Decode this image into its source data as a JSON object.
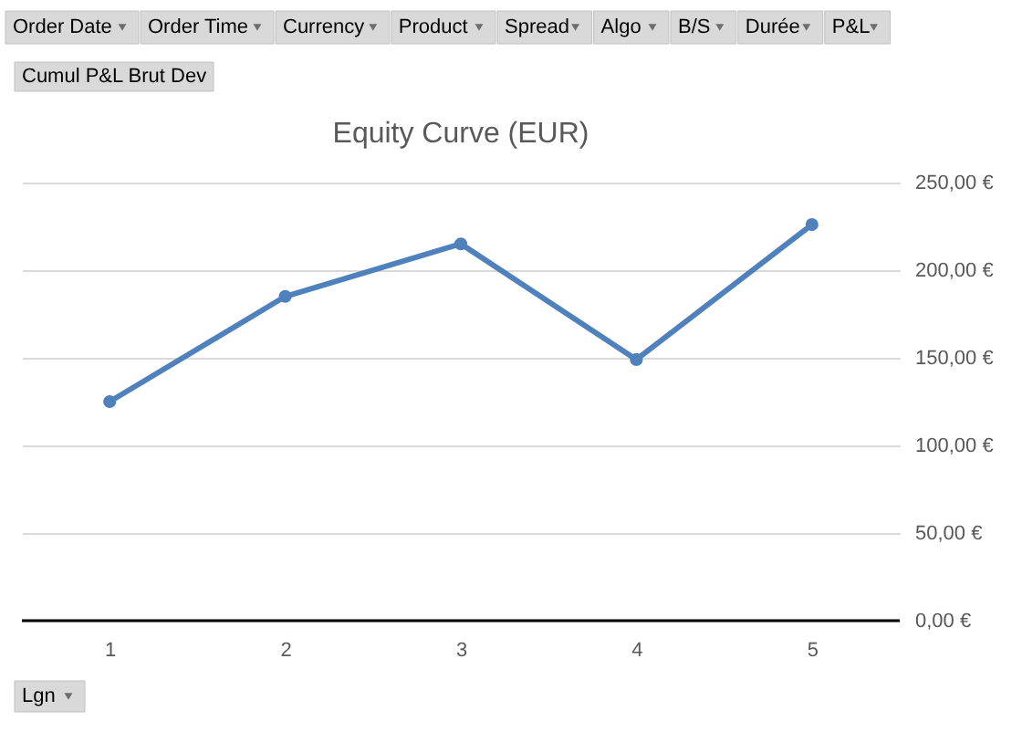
{
  "chart_data": {
    "type": "line",
    "title": "Equity Curve (EUR)",
    "categories": [
      "1",
      "2",
      "3",
      "4",
      "5"
    ],
    "series": [
      {
        "color": "#4f81bd",
        "values": [
          125,
          185,
          215,
          149,
          226
        ]
      }
    ],
    "ylim": [
      0,
      250
    ],
    "yticks": [
      {
        "value": 0,
        "label": "0,00 €"
      },
      {
        "value": 50,
        "label": "50,00 €"
      },
      {
        "value": 100,
        "label": "100,00 €"
      },
      {
        "value": 150,
        "label": "150,00 €"
      },
      {
        "value": 200,
        "label": "200,00 €"
      },
      {
        "value": 250,
        "label": "250,00 €"
      }
    ],
    "grid": "y",
    "marker": "circle",
    "line_style": "solid",
    "annotations": [
      "Order Date",
      "Order Time",
      "Currency",
      "Product",
      "Spread",
      "Algo",
      "B/S",
      "Durée",
      "P&L",
      "Cumul P&L Brut Dev",
      "Lgn"
    ]
  }
}
